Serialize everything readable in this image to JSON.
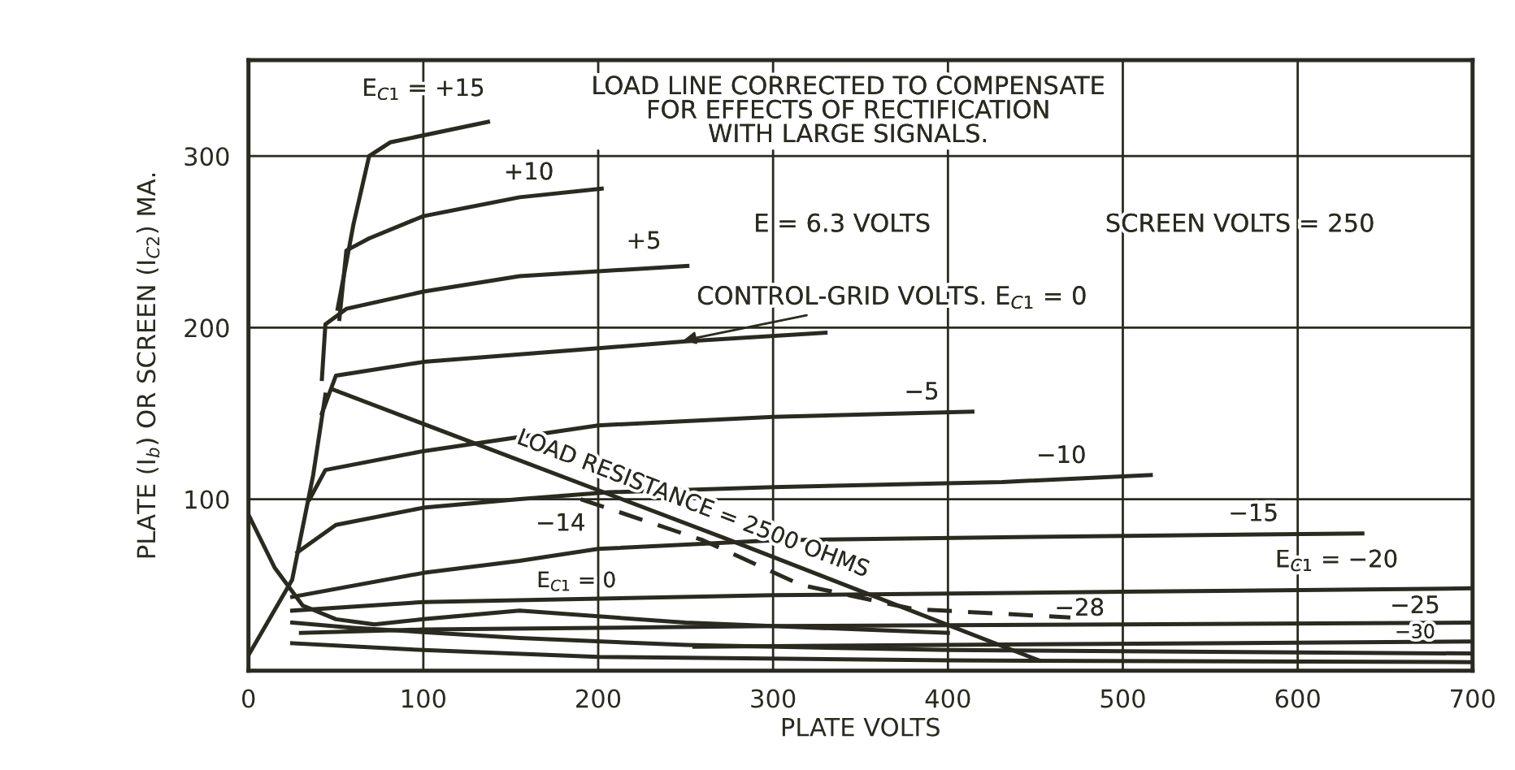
{
  "chart_data": {
    "type": "line",
    "xlabel": "PLATE VOLTS",
    "ylabel": "PLATE (I$_{b}$) OR SCREEN (I$_{C2}$) MA.",
    "xlim": [
      0,
      700
    ],
    "xticks": [
      0,
      100,
      200,
      300,
      400,
      500,
      600,
      700
    ],
    "ylim": [
      0,
      356
    ],
    "yticks": [
      100,
      200,
      300
    ],
    "grid": true,
    "marker": "none",
    "line_style": "solid",
    "series": [
      {
        "color": "#2a2a20",
        "x": [
          51,
          60,
          69,
          81,
          137
        ],
        "values": [
          211,
          260,
          300,
          308,
          320
        ]
      },
      {
        "color": "#2a2a20",
        "x": [
          52,
          56,
          69,
          100,
          155,
          202
        ],
        "values": [
          205,
          245,
          252,
          265,
          276,
          281
        ]
      },
      {
        "color": "#2a2a20",
        "x": [
          42,
          44,
          56,
          100,
          155,
          251
        ],
        "values": [
          170,
          202,
          211,
          221,
          230,
          236
        ]
      },
      {
        "color": "#2a2a20",
        "x": [
          42,
          50,
          100,
          200,
          250,
          330
        ],
        "values": [
          150,
          172,
          180,
          188,
          192,
          197
        ]
      },
      {
        "color": "#2a2a20",
        "x": [
          35,
          44,
          100,
          200,
          300,
          414
        ],
        "values": [
          100,
          117,
          128,
          143,
          148,
          151
        ]
      },
      {
        "color": "#2a2a20",
        "x": [
          28,
          50,
          100,
          155,
          206,
          300,
          431,
          516
        ],
        "values": [
          69,
          85,
          95,
          100,
          104,
          107,
          110,
          114
        ]
      },
      {
        "color": "#2a2a20",
        "x": [
          25,
          100,
          155,
          200,
          300,
          450,
          637
        ],
        "values": [
          43,
          57,
          64,
          71,
          76,
          78,
          80
        ]
      },
      {
        "color": "#2a2a20",
        "x": [
          25,
          100,
          300,
          500,
          700
        ],
        "values": [
          35,
          40,
          44,
          46,
          48
        ]
      },
      {
        "color": "#2a2a20",
        "x": [
          30,
          100,
          300,
          500,
          700
        ],
        "values": [
          22,
          24,
          26,
          27,
          28
        ]
      },
      {
        "color": "#2a2a20",
        "x": [
          255,
          400,
          700
        ],
        "values": [
          14,
          15,
          17
        ]
      },
      {
        "color": "#2a2a20",
        "x": [
          0,
          15,
          31,
          50,
          72,
          100,
          155,
          250,
          400
        ],
        "values": [
          91,
          60,
          38,
          30,
          27,
          30,
          35,
          28,
          22
        ]
      },
      {
        "color": "#2a2a20",
        "x": [
          25,
          60,
          155,
          250,
          400,
          700
        ],
        "values": [
          28,
          25,
          19,
          15,
          12,
          10
        ]
      },
      {
        "color": "#2a2a20",
        "x": [
          25,
          100,
          200,
          400,
          700
        ],
        "values": [
          16,
          12,
          8,
          6,
          5
        ]
      },
      {
        "color": "#2a2a20",
        "x": [
          0,
          25,
          37,
          44
        ],
        "values": [
          9,
          53,
          114,
          161
        ]
      },
      {
        "color": "#2a2a20",
        "x": [
          48,
          273,
          452
        ],
        "values": [
          164,
          77,
          6
        ]
      },
      {
        "color": "#2a2a20",
        "line_style": "dashed",
        "x": [
          190,
          260,
          316,
          380,
          470
        ],
        "values": [
          100,
          76,
          50,
          36,
          31
        ]
      }
    ],
    "annotations": [
      "LOAD LINE CORRECTED TO COMPENSATE\nFOR EFFECTS OF RECTIFICATION\nWITH LARGE SIGNALS.",
      "E = 6.3 VOLTS",
      "SCREEN VOLTS = 250",
      "E$_{C1}$ = +15",
      "+10",
      "+5",
      {
        "text": "CONTROL-GRID VOLTS. E$_{C1}$ = 0",
        "x": 246,
        "y": 192
      },
      "−5",
      "−10",
      "−15",
      "E$_{C1}$ = −20",
      "−25",
      "−30",
      "−14",
      "−28",
      "E$_{C1}$ = 0",
      {
        "text": "LOAD RESISTANCE = 2500 OHMS",
        "x": 250,
        "y": 86
      }
    ]
  }
}
